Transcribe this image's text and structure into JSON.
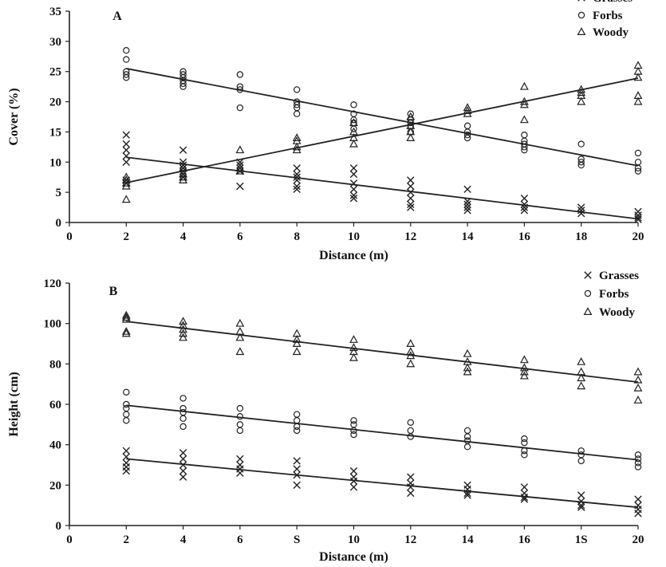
{
  "chart_data": [
    {
      "type": "scatter",
      "panel_label": "A",
      "xlabel": "Distance (m)",
      "ylabel": "Cover (%)",
      "xlim": [
        0,
        20
      ],
      "ylim": [
        0,
        35
      ],
      "x_ticks": [
        "0",
        "2",
        "4",
        "6",
        "8",
        "10",
        "12",
        "14",
        "16",
        "18",
        "20"
      ],
      "y_ticks": [
        "0",
        "5",
        "10",
        "15",
        "20",
        "25",
        "30",
        "35"
      ],
      "legend": {
        "position": "top-right",
        "entries": [
          "Grasses",
          "Forbs",
          "Woody"
        ]
      },
      "series": [
        {
          "name": "Grasses",
          "marker": "x",
          "points": [
            [
              2,
              14.5
            ],
            [
              2,
              13
            ],
            [
              2,
              12
            ],
            [
              2,
              11
            ],
            [
              2,
              10
            ],
            [
              2,
              7
            ],
            [
              2,
              6.5
            ],
            [
              4,
              12
            ],
            [
              4,
              10
            ],
            [
              4,
              9.5
            ],
            [
              4,
              9
            ],
            [
              4,
              8.5
            ],
            [
              4,
              8
            ],
            [
              4,
              7.5
            ],
            [
              6,
              10
            ],
            [
              6,
              9.5
            ],
            [
              6,
              9
            ],
            [
              6,
              8.5
            ],
            [
              6,
              6
            ],
            [
              8,
              9
            ],
            [
              8,
              8
            ],
            [
              8,
              7.5
            ],
            [
              8,
              7
            ],
            [
              8,
              6
            ],
            [
              8,
              5.5
            ],
            [
              10,
              9
            ],
            [
              10,
              8
            ],
            [
              10,
              6.5
            ],
            [
              10,
              5.5
            ],
            [
              10,
              4.5
            ],
            [
              10,
              4
            ],
            [
              12,
              7
            ],
            [
              12,
              6
            ],
            [
              12,
              5
            ],
            [
              12,
              4
            ],
            [
              12,
              3
            ],
            [
              12,
              2.5
            ],
            [
              14,
              5.5
            ],
            [
              14,
              3.5
            ],
            [
              14,
              3
            ],
            [
              14,
              2.5
            ],
            [
              14,
              2
            ],
            [
              16,
              4
            ],
            [
              16,
              3
            ],
            [
              16,
              2.5
            ],
            [
              16,
              2
            ],
            [
              18,
              2.5
            ],
            [
              18,
              2
            ],
            [
              18,
              1.5
            ],
            [
              20,
              1.8
            ],
            [
              20,
              1.2
            ],
            [
              20,
              0.8
            ],
            [
              20,
              0.5
            ]
          ],
          "trend": [
            [
              2,
              10.8
            ],
            [
              20,
              0.6
            ]
          ]
        },
        {
          "name": "Forbs",
          "marker": "circle",
          "points": [
            [
              2,
              28.5
            ],
            [
              2,
              27
            ],
            [
              2,
              25
            ],
            [
              2,
              24.5
            ],
            [
              2,
              24
            ],
            [
              4,
              25
            ],
            [
              4,
              24.5
            ],
            [
              4,
              24
            ],
            [
              4,
              23.5
            ],
            [
              4,
              23
            ],
            [
              4,
              22.5
            ],
            [
              6,
              24.5
            ],
            [
              6,
              22.5
            ],
            [
              6,
              22
            ],
            [
              6,
              19
            ],
            [
              8,
              22
            ],
            [
              8,
              20
            ],
            [
              8,
              19.5
            ],
            [
              8,
              19
            ],
            [
              8,
              18
            ],
            [
              10,
              19.5
            ],
            [
              10,
              18
            ],
            [
              10,
              17
            ],
            [
              10,
              16.5
            ],
            [
              10,
              15.5
            ],
            [
              12,
              18
            ],
            [
              12,
              17
            ],
            [
              12,
              16.5
            ],
            [
              12,
              16
            ],
            [
              12,
              15
            ],
            [
              14,
              16
            ],
            [
              14,
              15
            ],
            [
              14,
              14.5
            ],
            [
              14,
              14
            ],
            [
              16,
              14.5
            ],
            [
              16,
              13.5
            ],
            [
              16,
              13
            ],
            [
              16,
              12.5
            ],
            [
              16,
              12
            ],
            [
              18,
              13
            ],
            [
              18,
              10.5
            ],
            [
              18,
              10
            ],
            [
              18,
              9.5
            ],
            [
              20,
              11.5
            ],
            [
              20,
              10
            ],
            [
              20,
              9
            ],
            [
              20,
              8.5
            ]
          ],
          "trend": [
            [
              2,
              25.5
            ],
            [
              20,
              9.4
            ]
          ]
        },
        {
          "name": "Woody",
          "marker": "triangle",
          "points": [
            [
              2,
              7.5
            ],
            [
              2,
              7
            ],
            [
              2,
              6.5
            ],
            [
              2,
              6
            ],
            [
              2,
              3.8
            ],
            [
              4,
              9
            ],
            [
              4,
              8
            ],
            [
              4,
              7.5
            ],
            [
              4,
              7
            ],
            [
              6,
              12
            ],
            [
              6,
              9
            ],
            [
              6,
              8.5
            ],
            [
              8,
              14
            ],
            [
              8,
              13.5
            ],
            [
              8,
              12.5
            ],
            [
              8,
              12
            ],
            [
              10,
              16.5
            ],
            [
              10,
              15
            ],
            [
              10,
              14
            ],
            [
              10,
              13
            ],
            [
              12,
              17.5
            ],
            [
              12,
              16
            ],
            [
              12,
              15
            ],
            [
              12,
              14
            ],
            [
              14,
              19
            ],
            [
              14,
              18.5
            ],
            [
              14,
              18
            ],
            [
              16,
              22.5
            ],
            [
              16,
              20
            ],
            [
              16,
              19.5
            ],
            [
              16,
              17
            ],
            [
              18,
              22
            ],
            [
              18,
              21.5
            ],
            [
              18,
              21
            ],
            [
              18,
              20
            ],
            [
              20,
              26
            ],
            [
              20,
              25
            ],
            [
              20,
              24
            ],
            [
              20,
              21
            ],
            [
              20,
              20
            ]
          ],
          "trend": [
            [
              2,
              6.6
            ],
            [
              20,
              23.9
            ]
          ]
        }
      ]
    },
    {
      "type": "scatter",
      "panel_label": "B",
      "xlabel": "Distance (m)",
      "ylabel": "Height (cm)",
      "xlim": [
        0,
        20
      ],
      "ylim": [
        0,
        120
      ],
      "x_ticks": [
        "0",
        "2",
        "4",
        "6",
        "S",
        "10",
        "12",
        "14",
        "16",
        "1S",
        "20"
      ],
      "y_ticks": [
        "0",
        "20",
        "40",
        "60",
        "80",
        "100",
        "120"
      ],
      "legend": {
        "position": "top-right",
        "entries": [
          "Grasses",
          "Forbs",
          "Woody"
        ]
      },
      "series": [
        {
          "name": "Grasses",
          "marker": "x",
          "points": [
            [
              2,
              37
            ],
            [
              2,
              34
            ],
            [
              2,
              31
            ],
            [
              2,
              29
            ],
            [
              2,
              27
            ],
            [
              4,
              36
            ],
            [
              4,
              33
            ],
            [
              4,
              30
            ],
            [
              4,
              27
            ],
            [
              4,
              24
            ],
            [
              6,
              33
            ],
            [
              6,
              30
            ],
            [
              6,
              28
            ],
            [
              6,
              26
            ],
            [
              8,
              32
            ],
            [
              8,
              28
            ],
            [
              8,
              25
            ],
            [
              8,
              20
            ],
            [
              10,
              27
            ],
            [
              10,
              24
            ],
            [
              10,
              22
            ],
            [
              10,
              19
            ],
            [
              12,
              24
            ],
            [
              12,
              21
            ],
            [
              12,
              19
            ],
            [
              12,
              16
            ],
            [
              14,
              20
            ],
            [
              14,
              18
            ],
            [
              14,
              16
            ],
            [
              14,
              15
            ],
            [
              16,
              19
            ],
            [
              16,
              16
            ],
            [
              16,
              14
            ],
            [
              16,
              13
            ],
            [
              18,
              15
            ],
            [
              18,
              12
            ],
            [
              18,
              10
            ],
            [
              18,
              9
            ],
            [
              20,
              13
            ],
            [
              20,
              10
            ],
            [
              20,
              8
            ],
            [
              20,
              6
            ]
          ],
          "trend": [
            [
              2,
              33
            ],
            [
              20,
              9
            ]
          ]
        },
        {
          "name": "Forbs",
          "marker": "circle",
          "points": [
            [
              2,
              66
            ],
            [
              2,
              60
            ],
            [
              2,
              58
            ],
            [
              2,
              55
            ],
            [
              2,
              52
            ],
            [
              4,
              63
            ],
            [
              4,
              58
            ],
            [
              4,
              56
            ],
            [
              4,
              53
            ],
            [
              4,
              49
            ],
            [
              6,
              58
            ],
            [
              6,
              54
            ],
            [
              6,
              50
            ],
            [
              6,
              47
            ],
            [
              8,
              55
            ],
            [
              8,
              52
            ],
            [
              8,
              49
            ],
            [
              8,
              47
            ],
            [
              10,
              52
            ],
            [
              10,
              50
            ],
            [
              10,
              47
            ],
            [
              10,
              45
            ],
            [
              12,
              51
            ],
            [
              12,
              47
            ],
            [
              12,
              44
            ],
            [
              14,
              47
            ],
            [
              14,
              44
            ],
            [
              14,
              42
            ],
            [
              14,
              39
            ],
            [
              16,
              43
            ],
            [
              16,
              41
            ],
            [
              16,
              37
            ],
            [
              16,
              35
            ],
            [
              18,
              37
            ],
            [
              18,
              35
            ],
            [
              18,
              32
            ],
            [
              20,
              35
            ],
            [
              20,
              33
            ],
            [
              20,
              31
            ],
            [
              20,
              29
            ]
          ],
          "trend": [
            [
              2,
              59.5
            ],
            [
              20,
              32.5
            ]
          ]
        },
        {
          "name": "Woody",
          "marker": "triangle",
          "points": [
            [
              2,
              104
            ],
            [
              2,
              103
            ],
            [
              2,
              102
            ],
            [
              2,
              96
            ],
            [
              2,
              95
            ],
            [
              4,
              101
            ],
            [
              4,
              99
            ],
            [
              4,
              97
            ],
            [
              4,
              95
            ],
            [
              4,
              93
            ],
            [
              6,
              100
            ],
            [
              6,
              96
            ],
            [
              6,
              93
            ],
            [
              6,
              86
            ],
            [
              8,
              95
            ],
            [
              8,
              92
            ],
            [
              8,
              90
            ],
            [
              8,
              86
            ],
            [
              10,
              92
            ],
            [
              10,
              88
            ],
            [
              10,
              86
            ],
            [
              10,
              83
            ],
            [
              12,
              90
            ],
            [
              12,
              86
            ],
            [
              12,
              84
            ],
            [
              12,
              80
            ],
            [
              14,
              85
            ],
            [
              14,
              81
            ],
            [
              14,
              78
            ],
            [
              14,
              76
            ],
            [
              16,
              82
            ],
            [
              16,
              78
            ],
            [
              16,
              76
            ],
            [
              16,
              74
            ],
            [
              18,
              81
            ],
            [
              18,
              76
            ],
            [
              18,
              73
            ],
            [
              18,
              69
            ],
            [
              20,
              76
            ],
            [
              20,
              72
            ],
            [
              20,
              68
            ],
            [
              20,
              62
            ]
          ],
          "trend": [
            [
              2,
              101
            ],
            [
              20,
              71
            ]
          ]
        }
      ]
    }
  ]
}
